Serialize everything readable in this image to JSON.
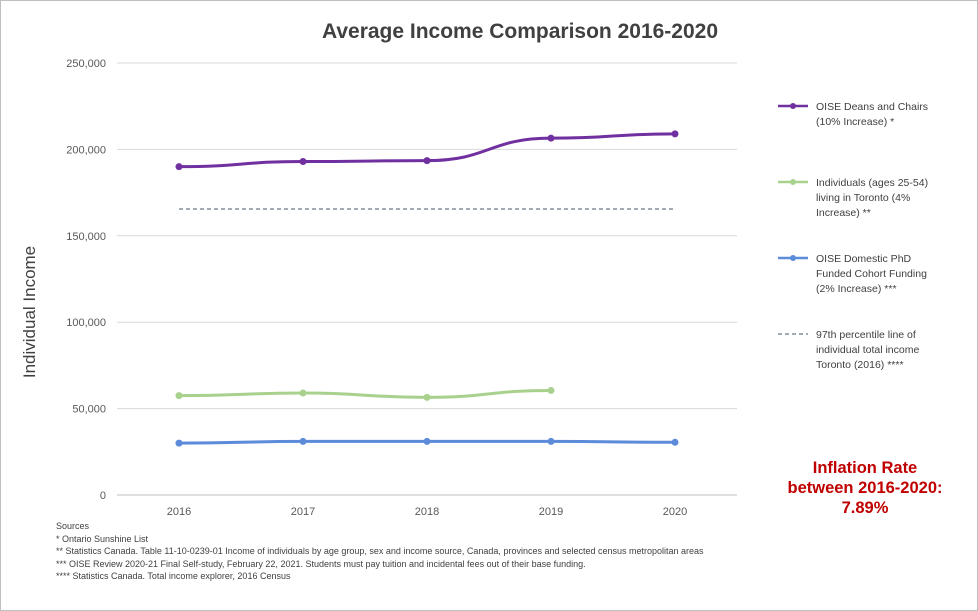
{
  "chart_data": {
    "type": "line",
    "title": "Average Income Comparison 2016-2020",
    "xlabel": "",
    "ylabel": "Individual Income",
    "x": [
      "2016",
      "2017",
      "2018",
      "2019",
      "2020"
    ],
    "ylim": [
      0,
      250000
    ],
    "yticks": [
      "0",
      "50,000",
      "100,000",
      "150,000",
      "200,000",
      "250,000"
    ],
    "grid": true,
    "legend_position": "right",
    "series": [
      {
        "name": "OISE Deans and Chairs (10% Increase) *",
        "color": "#7030a0",
        "marker": true,
        "style": "solid",
        "values": [
          190000,
          193000,
          193500,
          206500,
          209000
        ]
      },
      {
        "name": "Individuals (ages 25-54) living in Toronto (4% Increase) **",
        "color": "#a9d18e",
        "marker": true,
        "style": "solid",
        "values": [
          57500,
          59000,
          56500,
          60500,
          null
        ]
      },
      {
        "name": "OISE Domestic PhD Funded Cohort Funding (2% Increase) ***",
        "color": "#5b8bd9",
        "marker": true,
        "style": "solid",
        "values": [
          30000,
          31000,
          31000,
          31000,
          30500
        ]
      },
      {
        "name": "97th percentile line of individual total income Toronto (2016) ****",
        "color": "#44546a",
        "marker": false,
        "style": "dashed",
        "values": [
          165500,
          165500,
          165500,
          165500,
          165500
        ]
      }
    ]
  },
  "legend": [
    "OISE Deans and Chairs (10% Increase) *",
    "Individuals (ages 25-54) living in Toronto (4% Increase) **",
    "OISE Domestic PhD Funded Cohort Funding (2% Increase) ***",
    "97th percentile line of individual total income Toronto (2016) ****"
  ],
  "inflation": {
    "line1": "Inflation Rate",
    "line2": "between 2016-2020:",
    "line3": "7.89%"
  },
  "sources": [
    "Sources",
    "* Ontario Sunshine List",
    "** Statistics Canada. Table 11-10-0239-01 Income of individuals by age group, sex and income source, Canada, provinces and selected census metropolitan areas",
    "*** OISE Review 2020-21 Final Self-study, February 22, 2021. Students must pay tuition and incidental fees out of their base funding.",
    "**** Statistics Canada. Total income explorer, 2016 Census"
  ]
}
